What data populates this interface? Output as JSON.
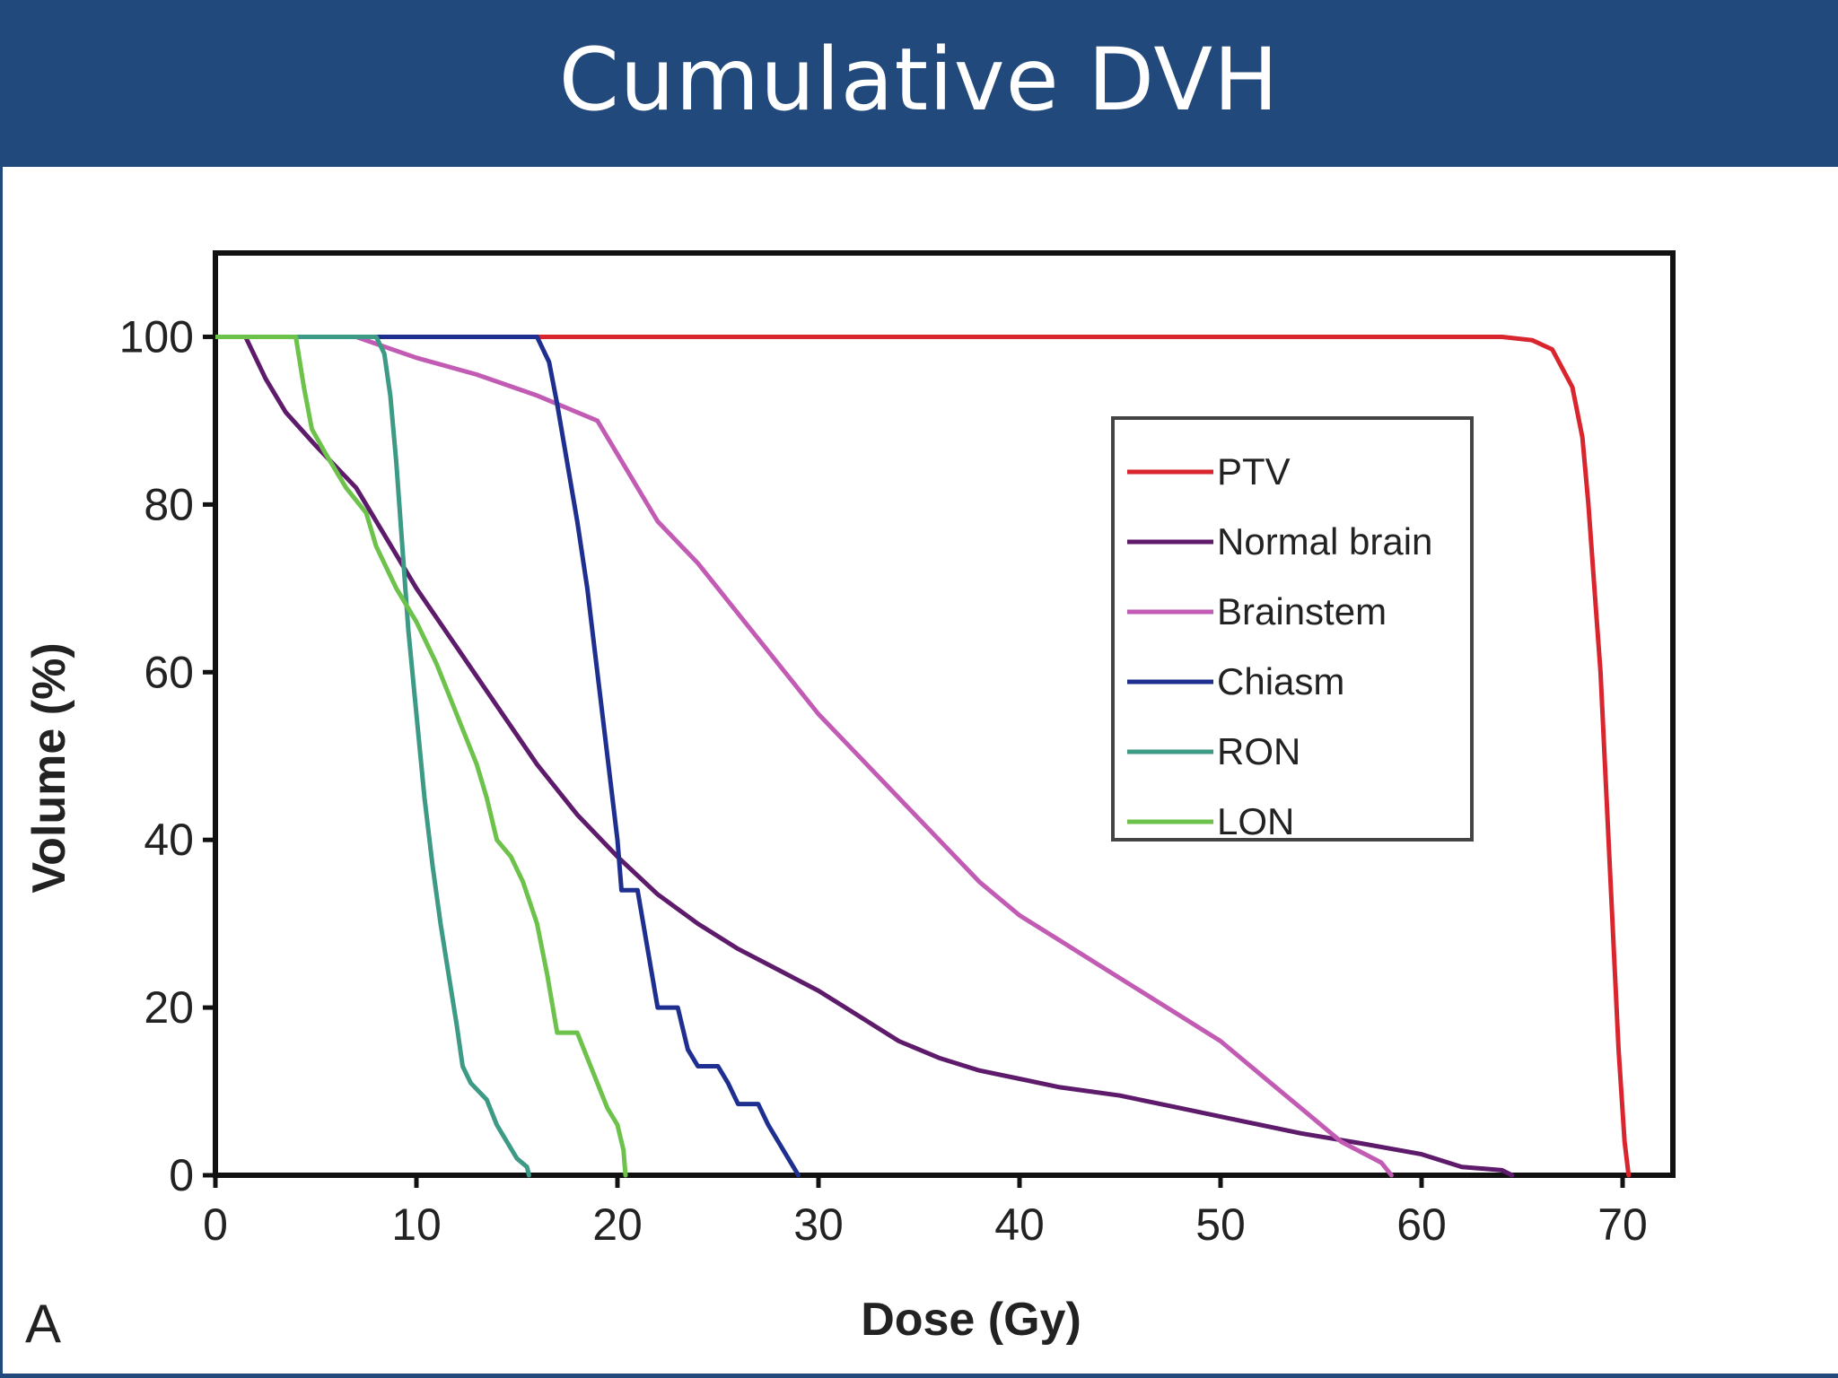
{
  "slide": {
    "title": "Cumulative DVH",
    "panel_label": "A"
  },
  "chart_data": {
    "type": "line",
    "title": "",
    "xlabel": "Dose (Gy)",
    "ylabel": "Volume (%)",
    "xlim": [
      0,
      72.5
    ],
    "ylim": [
      0,
      110
    ],
    "xticks": [
      0,
      10,
      20,
      30,
      40,
      50,
      60,
      70
    ],
    "yticks": [
      0,
      20,
      40,
      60,
      80,
      100
    ],
    "grid": false,
    "legend_position": "upper-right",
    "series": [
      {
        "name": "PTV",
        "color": "#d9262e",
        "points": [
          [
            0,
            100
          ],
          [
            64,
            100
          ],
          [
            65.5,
            99.6
          ],
          [
            66.5,
            98.5
          ],
          [
            67.5,
            94
          ],
          [
            68,
            88
          ],
          [
            68.3,
            80
          ],
          [
            68.6,
            70
          ],
          [
            68.9,
            60
          ],
          [
            69.2,
            45
          ],
          [
            69.5,
            30
          ],
          [
            69.8,
            15
          ],
          [
            70.1,
            4
          ],
          [
            70.3,
            0
          ]
        ]
      },
      {
        "name": "Normal brain",
        "color": "#5e1a6b",
        "points": [
          [
            1.5,
            100
          ],
          [
            2.5,
            95
          ],
          [
            3.5,
            91
          ],
          [
            5,
            87
          ],
          [
            7,
            82
          ],
          [
            8.5,
            76
          ],
          [
            10,
            70
          ],
          [
            12,
            63
          ],
          [
            14,
            56
          ],
          [
            16,
            49
          ],
          [
            18,
            43
          ],
          [
            20,
            38
          ],
          [
            22,
            33.5
          ],
          [
            24,
            30
          ],
          [
            26,
            27
          ],
          [
            28,
            24.5
          ],
          [
            30,
            22
          ],
          [
            32,
            19
          ],
          [
            34,
            16
          ],
          [
            36,
            14
          ],
          [
            38,
            12.5
          ],
          [
            40,
            11.5
          ],
          [
            42,
            10.5
          ],
          [
            45,
            9.5
          ],
          [
            48,
            8
          ],
          [
            51,
            6.5
          ],
          [
            54,
            5
          ],
          [
            57,
            3.8
          ],
          [
            60,
            2.5
          ],
          [
            62,
            1
          ],
          [
            64,
            0.6
          ],
          [
            64.5,
            0
          ]
        ]
      },
      {
        "name": "Brainstem",
        "color": "#c25bb4",
        "points": [
          [
            0,
            100
          ],
          [
            7,
            100
          ],
          [
            10,
            97.5
          ],
          [
            13,
            95.5
          ],
          [
            16,
            93
          ],
          [
            19,
            90
          ],
          [
            20,
            86
          ],
          [
            22,
            78
          ],
          [
            24,
            73
          ],
          [
            26,
            67
          ],
          [
            28,
            61
          ],
          [
            30,
            55
          ],
          [
            32,
            50
          ],
          [
            34,
            45
          ],
          [
            36,
            40
          ],
          [
            38,
            35
          ],
          [
            40,
            31
          ],
          [
            42,
            28
          ],
          [
            44,
            25
          ],
          [
            46,
            22
          ],
          [
            48,
            19
          ],
          [
            50,
            16
          ],
          [
            52,
            12
          ],
          [
            54,
            8
          ],
          [
            56,
            4
          ],
          [
            58,
            1.5
          ],
          [
            58.5,
            0
          ]
        ]
      },
      {
        "name": "Chiasm",
        "color": "#1f2f8f",
        "points": [
          [
            0,
            100
          ],
          [
            16,
            100
          ],
          [
            16.6,
            97
          ],
          [
            17,
            92
          ],
          [
            17.5,
            85
          ],
          [
            18,
            78
          ],
          [
            18.5,
            70
          ],
          [
            19,
            60
          ],
          [
            19.5,
            50
          ],
          [
            20,
            40
          ],
          [
            20.2,
            34
          ],
          [
            21,
            34
          ],
          [
            21.5,
            27
          ],
          [
            22,
            20
          ],
          [
            23,
            20
          ],
          [
            23.5,
            15
          ],
          [
            24,
            13
          ],
          [
            25,
            13
          ],
          [
            25.5,
            11
          ],
          [
            26,
            8.5
          ],
          [
            27,
            8.5
          ],
          [
            27.5,
            6
          ],
          [
            28,
            4
          ],
          [
            28.5,
            2
          ],
          [
            29,
            0
          ]
        ]
      },
      {
        "name": "RON",
        "color": "#3d9a84",
        "points": [
          [
            0,
            100
          ],
          [
            8,
            100
          ],
          [
            8.4,
            98
          ],
          [
            8.7,
            93
          ],
          [
            9,
            85
          ],
          [
            9.3,
            75
          ],
          [
            9.6,
            65
          ],
          [
            10,
            55
          ],
          [
            10.4,
            45
          ],
          [
            10.8,
            37
          ],
          [
            11.2,
            30
          ],
          [
            11.6,
            24
          ],
          [
            12,
            18
          ],
          [
            12.3,
            13
          ],
          [
            12.7,
            11
          ],
          [
            13.5,
            9
          ],
          [
            14,
            6
          ],
          [
            14.5,
            4
          ],
          [
            15,
            2
          ],
          [
            15.5,
            1
          ],
          [
            15.6,
            0
          ]
        ]
      },
      {
        "name": "LON",
        "color": "#6cc24a",
        "points": [
          [
            0,
            100
          ],
          [
            4,
            100
          ],
          [
            4.4,
            94
          ],
          [
            4.8,
            89
          ],
          [
            5.5,
            86
          ],
          [
            6.5,
            82
          ],
          [
            7.5,
            79
          ],
          [
            8,
            75
          ],
          [
            9,
            70
          ],
          [
            10,
            66
          ],
          [
            11,
            61
          ],
          [
            12,
            55
          ],
          [
            13,
            49
          ],
          [
            13.5,
            45
          ],
          [
            14,
            40
          ],
          [
            14.7,
            38
          ],
          [
            15.3,
            35
          ],
          [
            16,
            30
          ],
          [
            16.5,
            24
          ],
          [
            17,
            17
          ],
          [
            18,
            17
          ],
          [
            18.5,
            14
          ],
          [
            19,
            11
          ],
          [
            19.5,
            8
          ],
          [
            20,
            6
          ],
          [
            20.3,
            3
          ],
          [
            20.4,
            0
          ]
        ]
      }
    ]
  }
}
